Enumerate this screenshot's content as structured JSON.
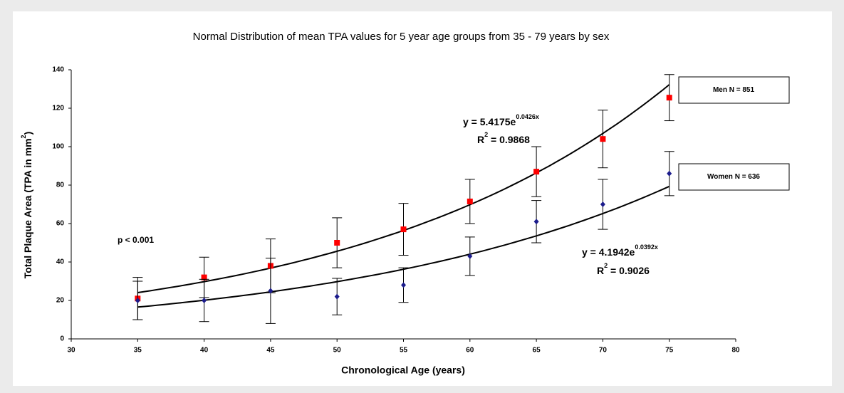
{
  "chart_data": {
    "type": "scatter",
    "title": "Normal Distribution of mean TPA values for 5 year age groups from 35 - 79 years by sex",
    "x_label": "Chronological Age (years)",
    "y_label": {
      "text": "Total Plaque Area (TPA in mm",
      "sup": "2",
      "end": ")"
    },
    "xlim": [
      30,
      80
    ],
    "xticks": [
      30,
      35,
      40,
      45,
      50,
      55,
      60,
      65,
      70,
      75,
      80
    ],
    "ylim": [
      0,
      140
    ],
    "yticks": [
      0,
      20,
      40,
      60,
      80,
      100,
      120,
      140
    ],
    "grid": false,
    "x": [
      35,
      40,
      45,
      50,
      55,
      60,
      65,
      70,
      75
    ],
    "series": [
      {
        "name": "Men N = 851",
        "color": "#ff0000",
        "marker": "square",
        "values": [
          21,
          32,
          38,
          50,
          57,
          71.5,
          87,
          104,
          125.5
        ],
        "errors": [
          11,
          10.5,
          14,
          13,
          13.5,
          11.5,
          13,
          15,
          12
        ],
        "trend": {
          "a": 5.4175,
          "b": 0.0426,
          "equation": {
            "text": "y = 5.4175e",
            "sup": "0.0426x"
          },
          "r2": {
            "text": "R",
            "sup": "2",
            "end": " = 0.9868"
          }
        }
      },
      {
        "name": "Women N = 636",
        "color": "#1c1c8c",
        "marker": "diamond",
        "values": [
          20,
          20,
          25,
          22,
          28,
          43,
          61,
          70,
          86
        ],
        "errors": [
          10,
          11,
          17,
          9.5,
          9,
          10,
          11,
          13,
          11.5
        ],
        "trend": {
          "a": 4.1942,
          "b": 0.0392,
          "equation": {
            "text": "y = 4.1942e",
            "sup": "0.0392x"
          },
          "r2": {
            "text": "R",
            "sup": "2",
            "end": " = 0.9026"
          }
        }
      }
    ],
    "annotation": "p < 0.001"
  }
}
